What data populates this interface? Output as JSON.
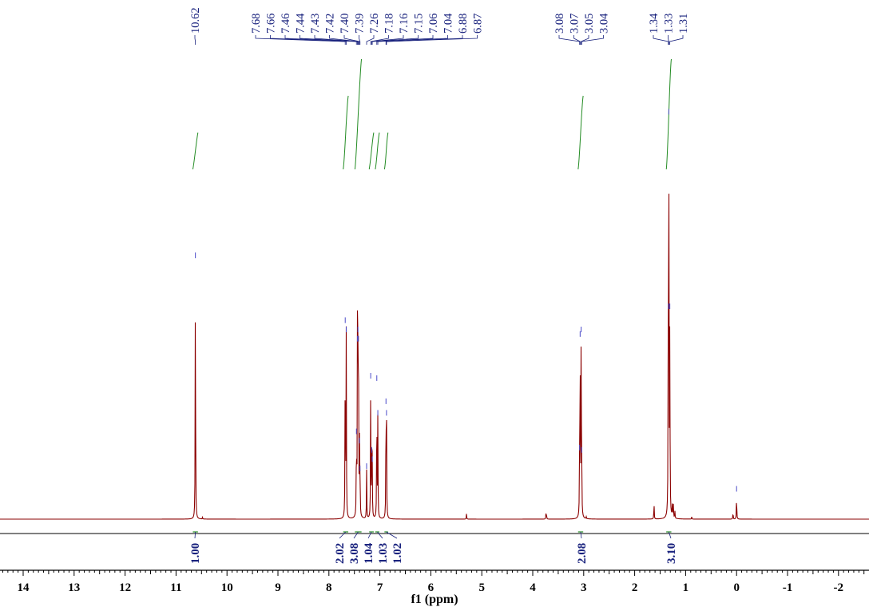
{
  "chart_data": {
    "type": "line",
    "title": "",
    "xlabel": "f1 (ppm)",
    "ylabel": "",
    "xlim": [
      14.3,
      -2.6
    ],
    "x_reversed": true,
    "x_ticks": [
      "14",
      "13",
      "12",
      "11",
      "10",
      "9",
      "8",
      "7",
      "6",
      "5",
      "4",
      "3",
      "2",
      "1",
      "0",
      "-1",
      "-2"
    ],
    "colors": {
      "spectrum": "#8b0000",
      "integral_curve": "#228b22",
      "peak_label": "#1a237e",
      "integral_label": "#1a237e"
    },
    "peak_labels": [
      "10.62",
      "7.68",
      "7.66",
      "7.46",
      "7.44",
      "7.43",
      "7.42",
      "7.40",
      "7.39",
      "7.26",
      "7.18",
      "7.16",
      "7.15",
      "7.06",
      "7.04",
      "6.88",
      "6.87",
      "3.08",
      "3.07",
      "3.05",
      "3.04",
      "1.34",
      "1.33",
      "1.31"
    ],
    "peaks": [
      {
        "x": 10.62,
        "height": 0.56
      },
      {
        "x": 10.48,
        "height": 0.004
      },
      {
        "x": 7.68,
        "height": 0.42
      },
      {
        "x": 7.66,
        "height": 0.4
      },
      {
        "x": 7.46,
        "height": 0.18
      },
      {
        "x": 7.44,
        "height": 0.38
      },
      {
        "x": 7.43,
        "height": 0.4
      },
      {
        "x": 7.42,
        "height": 0.38
      },
      {
        "x": 7.4,
        "height": 0.16
      },
      {
        "x": 7.39,
        "height": 0.1
      },
      {
        "x": 7.26,
        "height": 0.105
      },
      {
        "x": 7.18,
        "height": 0.3
      },
      {
        "x": 7.16,
        "height": 0.14
      },
      {
        "x": 7.15,
        "height": 0.12
      },
      {
        "x": 7.06,
        "height": 0.295
      },
      {
        "x": 7.04,
        "height": 0.22
      },
      {
        "x": 6.88,
        "height": 0.245
      },
      {
        "x": 6.87,
        "height": 0.22
      },
      {
        "x": 5.3,
        "height": 0.012
      },
      {
        "x": 3.74,
        "height": 0.012
      },
      {
        "x": 3.73,
        "height": 0.011
      },
      {
        "x": 3.08,
        "height": 0.145
      },
      {
        "x": 3.07,
        "height": 0.39
      },
      {
        "x": 3.05,
        "height": 0.4
      },
      {
        "x": 3.04,
        "height": 0.14
      },
      {
        "x": 2.95,
        "height": 0.004
      },
      {
        "x": 1.62,
        "height": 0.038
      },
      {
        "x": 1.34,
        "height": 0.45
      },
      {
        "x": 1.33,
        "height": 0.87
      },
      {
        "x": 1.31,
        "height": 0.45
      },
      {
        "x": 1.26,
        "height": 0.04
      },
      {
        "x": 1.24,
        "height": 0.03
      },
      {
        "x": 1.21,
        "height": 0.015
      },
      {
        "x": 0.88,
        "height": 0.005
      },
      {
        "x": 0.07,
        "height": 0.016
      },
      {
        "x": 0.0,
        "height": 0.056
      }
    ],
    "integrals": [
      {
        "from": 10.67,
        "to": 10.57,
        "value": "1.00",
        "rise": 0.1
      },
      {
        "from": 7.72,
        "to": 7.62,
        "value": "2.02",
        "rise": 0.2
      },
      {
        "from": 7.49,
        "to": 7.36,
        "value": "3.08",
        "rise": 0.3
      },
      {
        "from": 7.21,
        "to": 7.12,
        "value": "1.04",
        "rise": 0.1
      },
      {
        "from": 7.09,
        "to": 7.01,
        "value": "1.03",
        "rise": 0.1
      },
      {
        "from": 6.91,
        "to": 6.84,
        "value": "1.02",
        "rise": 0.1
      }
    ],
    "integrals_aliphatic": [
      {
        "from": 3.11,
        "to": 3.01,
        "value": "2.08",
        "rise": 0.2
      },
      {
        "from": 1.38,
        "to": 1.28,
        "value": "3.10",
        "rise": 0.3
      }
    ]
  }
}
